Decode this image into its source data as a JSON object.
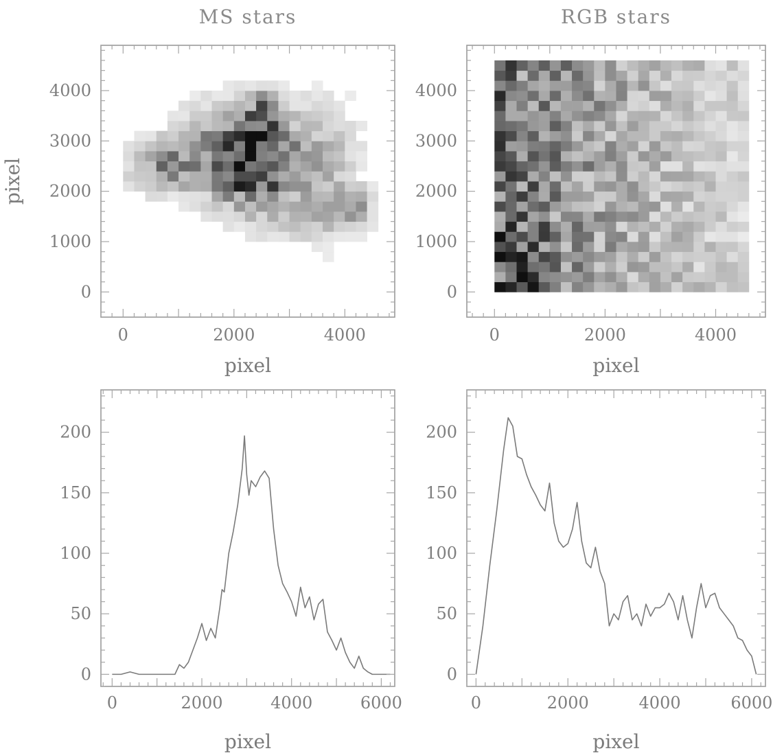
{
  "chart_data": [
    {
      "id": "ms-map",
      "type": "heatmap",
      "title": "MS stars",
      "xlabel": "pixel",
      "ylabel": "pixel",
      "xlim": [
        -400,
        4900
      ],
      "ylim": [
        -500,
        4900
      ],
      "xticks": [
        0,
        2000,
        4000
      ],
      "yticks": [
        0,
        1000,
        2000,
        3000,
        4000
      ],
      "bin_size": 200,
      "blobs": [
        {
          "x": 2500,
          "y": 2700,
          "sx": 450,
          "sy": 650,
          "w": 0.55
        },
        {
          "x": 2200,
          "y": 2400,
          "sx": 500,
          "sy": 450,
          "w": 0.45
        },
        {
          "x": 2550,
          "y": 3500,
          "sx": 220,
          "sy": 320,
          "w": 0.45
        },
        {
          "x": 700,
          "y": 2500,
          "sx": 450,
          "sy": 350,
          "w": 0.4
        },
        {
          "x": 1600,
          "y": 2900,
          "sx": 500,
          "sy": 600,
          "w": 0.32
        },
        {
          "x": 3600,
          "y": 2500,
          "sx": 450,
          "sy": 900,
          "w": 0.28
        },
        {
          "x": 4100,
          "y": 1700,
          "sx": 250,
          "sy": 250,
          "w": 0.35
        },
        {
          "x": 3200,
          "y": 1400,
          "sx": 900,
          "sy": 300,
          "w": 0.1
        }
      ]
    },
    {
      "id": "rgb-map",
      "type": "heatmap",
      "title": "RGB stars",
      "xlabel": "pixel",
      "ylabel": "",
      "xlim": [
        -500,
        4900
      ],
      "ylim": [
        -500,
        4900
      ],
      "xticks": [
        0,
        2000,
        4000
      ],
      "yticks": [
        0,
        1000,
        2000,
        3000,
        4000
      ],
      "bin_size": 200,
      "data_extent": {
        "x": [
          0,
          4500
        ],
        "y": [
          0,
          4500
        ]
      },
      "gradient": {
        "left": 0.72,
        "right": 0.18,
        "lower_left_boost": 0.25
      }
    },
    {
      "id": "ms-profile",
      "type": "line",
      "title": "",
      "xlabel": "pixel",
      "ylabel": "",
      "xlim": [
        -250,
        6300
      ],
      "ylim": [
        -10,
        235
      ],
      "xticks": [
        0,
        2000,
        4000,
        6000
      ],
      "yticks": [
        0,
        50,
        100,
        150,
        200
      ],
      "series": [
        {
          "x": [
            0,
            200,
            400,
            600,
            800,
            1000,
            1200,
            1400,
            1500,
            1600,
            1700,
            1800,
            1900,
            2000,
            2100,
            2200,
            2300,
            2400,
            2450,
            2500,
            2600,
            2700,
            2800,
            2900,
            2950,
            3000,
            3050,
            3100,
            3200,
            3300,
            3400,
            3500,
            3600,
            3700,
            3800,
            3900,
            4000,
            4100,
            4200,
            4300,
            4400,
            4500,
            4600,
            4700,
            4800,
            4900,
            5000,
            5100,
            5200,
            5300,
            5400,
            5500,
            5600,
            5700,
            5800,
            5900,
            6000,
            6100,
            6200
          ],
          "y": [
            0,
            0,
            2,
            0,
            0,
            0,
            0,
            0,
            8,
            5,
            10,
            20,
            30,
            42,
            28,
            38,
            30,
            55,
            70,
            68,
            100,
            118,
            140,
            170,
            197,
            165,
            148,
            160,
            155,
            163,
            168,
            162,
            120,
            90,
            75,
            68,
            60,
            48,
            72,
            55,
            64,
            45,
            58,
            62,
            35,
            28,
            20,
            30,
            18,
            10,
            5,
            15,
            5,
            2,
            0,
            0,
            0,
            0,
            0
          ]
        }
      ]
    },
    {
      "id": "rgb-profile",
      "type": "line",
      "title": "",
      "xlabel": "pixel",
      "ylabel": "",
      "xlim": [
        -200,
        6300
      ],
      "ylim": [
        -10,
        235
      ],
      "xticks": [
        0,
        2000,
        4000,
        6000
      ],
      "yticks": [
        0,
        50,
        100,
        150,
        200
      ],
      "series": [
        {
          "x": [
            0,
            150,
            300,
            450,
            600,
            700,
            800,
            900,
            1000,
            1100,
            1200,
            1300,
            1400,
            1500,
            1600,
            1700,
            1800,
            1900,
            2000,
            2100,
            2200,
            2300,
            2400,
            2500,
            2600,
            2700,
            2800,
            2900,
            3000,
            3100,
            3200,
            3300,
            3400,
            3500,
            3600,
            3700,
            3800,
            3900,
            4000,
            4100,
            4200,
            4300,
            4400,
            4500,
            4600,
            4700,
            4800,
            4900,
            5000,
            5100,
            5200,
            5300,
            5400,
            5500,
            5600,
            5700,
            5800,
            5900,
            6000,
            6100
          ],
          "y": [
            0,
            40,
            90,
            135,
            185,
            212,
            205,
            180,
            178,
            165,
            155,
            148,
            140,
            135,
            158,
            125,
            110,
            105,
            108,
            120,
            142,
            110,
            92,
            88,
            105,
            85,
            75,
            40,
            50,
            45,
            60,
            65,
            45,
            50,
            40,
            58,
            48,
            55,
            55,
            58,
            67,
            60,
            45,
            65,
            45,
            30,
            55,
            75,
            55,
            65,
            67,
            55,
            50,
            45,
            40,
            30,
            28,
            20,
            15,
            0
          ]
        }
      ]
    }
  ]
}
